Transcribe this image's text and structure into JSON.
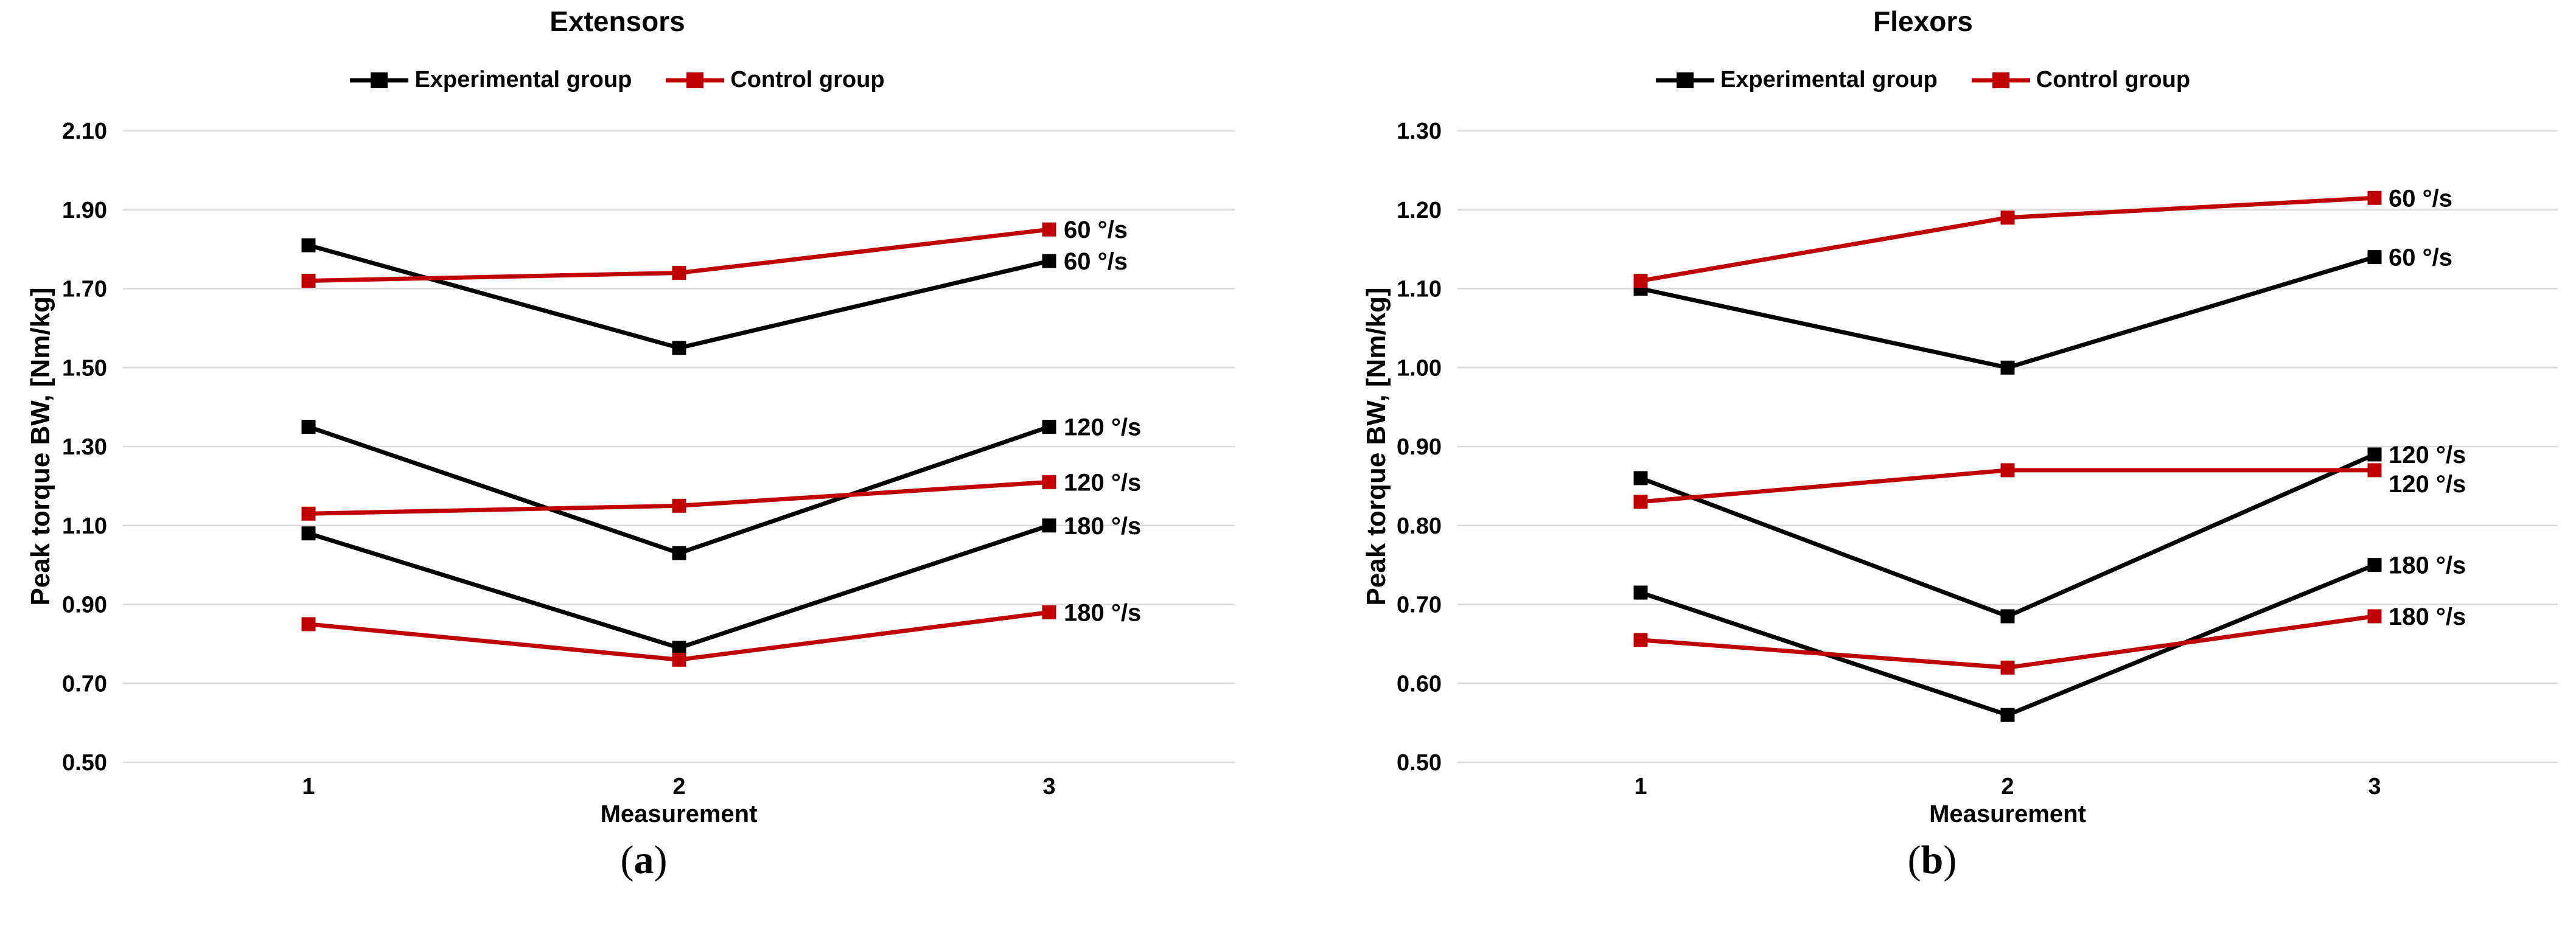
{
  "figure": {
    "background": "#FFFFFF"
  },
  "colors": {
    "experimental": "#000000",
    "control": "#C00000",
    "gridline": "#D9D9D9",
    "text": "#000000"
  },
  "chart_data": [
    {
      "type": "line",
      "title": "Extensors",
      "caption": {
        "open": "(",
        "letter": "a",
        "close": ")"
      },
      "xlabel": "Measurement",
      "ylabel": "Peak torque BW, [Nm/kg]",
      "x": [
        "1",
        "2",
        "3"
      ],
      "ylim": [
        0.5,
        2.1
      ],
      "yticks": [
        "2.10",
        "1.90",
        "1.70",
        "1.50",
        "1.30",
        "1.10",
        "0.90",
        "0.70",
        "0.50"
      ],
      "grid": true,
      "legend_position": "top",
      "legend": [
        "Experimental group",
        "Control group"
      ],
      "series": [
        {
          "name": "Experimental group 60 °/s",
          "group": "experimental",
          "speed": "60 °/s",
          "color": "#000000",
          "values": [
            1.81,
            1.55,
            1.77
          ],
          "end_label": "60 °/s"
        },
        {
          "name": "Control group 60 °/s",
          "group": "control",
          "speed": "60 °/s",
          "color": "#C00000",
          "values": [
            1.72,
            1.74,
            1.85
          ],
          "end_label": "60 °/s"
        },
        {
          "name": "Experimental group 120 °/s",
          "group": "experimental",
          "speed": "120 °/s",
          "color": "#000000",
          "values": [
            1.35,
            1.03,
            1.35
          ],
          "end_label": "120 °/s"
        },
        {
          "name": "Control group 120 °/s",
          "group": "control",
          "speed": "120 °/s",
          "color": "#C00000",
          "values": [
            1.13,
            1.15,
            1.21
          ],
          "end_label": "120 °/s"
        },
        {
          "name": "Experimental group 180 °/s",
          "group": "experimental",
          "speed": "180 °/s",
          "color": "#000000",
          "values": [
            1.08,
            0.79,
            1.1
          ],
          "end_label": "180 °/s"
        },
        {
          "name": "Control group 180 °/s",
          "group": "control",
          "speed": "180 °/s",
          "color": "#C00000",
          "values": [
            0.85,
            0.76,
            0.88
          ],
          "end_label": "180 °/s"
        }
      ]
    },
    {
      "type": "line",
      "title": "Flexors",
      "caption": {
        "open": "(",
        "letter": "b",
        "close": ")"
      },
      "xlabel": "Measurement",
      "ylabel": "Peak torque BW, [Nm/kg]",
      "x": [
        "1",
        "2",
        "3"
      ],
      "ylim": [
        0.5,
        1.3
      ],
      "yticks": [
        "1.30",
        "1.20",
        "1.10",
        "1.00",
        "0.90",
        "0.80",
        "0.70",
        "0.60",
        "0.50"
      ],
      "grid": true,
      "legend_position": "top",
      "legend": [
        "Experimental group",
        "Control group"
      ],
      "series": [
        {
          "name": "Experimental group 60 °/s",
          "group": "experimental",
          "speed": "60 °/s",
          "color": "#000000",
          "values": [
            1.1,
            1.0,
            1.14
          ],
          "end_label": "60 °/s"
        },
        {
          "name": "Control group 60 °/s",
          "group": "control",
          "speed": "60 °/s",
          "color": "#C00000",
          "values": [
            1.11,
            1.19,
            1.215
          ],
          "end_label": "60 °/s"
        },
        {
          "name": "Experimental group 120 °/s",
          "group": "experimental",
          "speed": "120 °/s",
          "color": "#000000",
          "values": [
            0.86,
            0.685,
            0.89
          ],
          "end_label": "120 °/s"
        },
        {
          "name": "Control group 120 °/s",
          "group": "control",
          "speed": "120 °/s",
          "color": "#C00000",
          "values": [
            0.83,
            0.87,
            0.87
          ],
          "end_label": "120 °/s"
        },
        {
          "name": "Experimental group 180 °/s",
          "group": "experimental",
          "speed": "180 °/s",
          "color": "#000000",
          "values": [
            0.715,
            0.56,
            0.75
          ],
          "end_label": "180 °/s"
        },
        {
          "name": "Control group 180 °/s",
          "group": "control",
          "speed": "180 °/s",
          "color": "#C00000",
          "values": [
            0.655,
            0.62,
            0.685
          ],
          "end_label": "180 °/s"
        }
      ]
    }
  ]
}
